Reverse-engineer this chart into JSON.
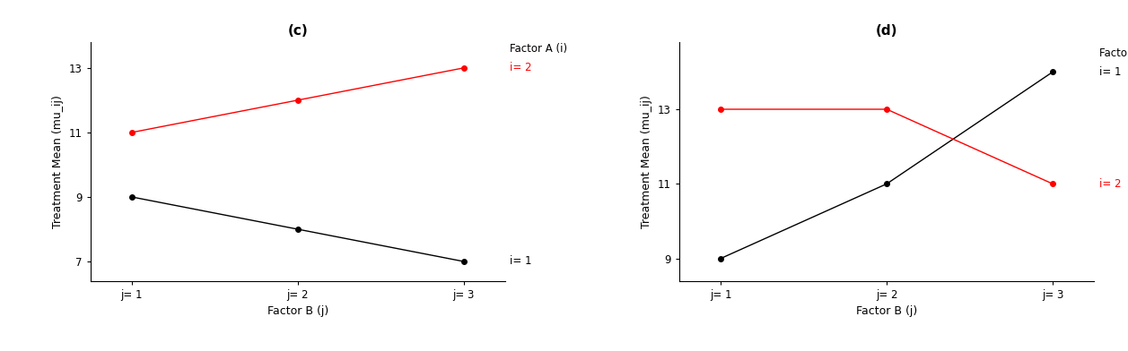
{
  "panel_c": {
    "title": "(c)",
    "xlabel": "Factor B (j)",
    "ylabel": "Treatment Mean (mu_ij)",
    "xtick_labels": [
      "j= 1",
      "j= 2",
      "j= 3"
    ],
    "xtick_vals": [
      1,
      2,
      3
    ],
    "line_i1": {
      "x": [
        1,
        2,
        3
      ],
      "y": [
        9,
        8,
        7
      ],
      "color": "black",
      "label": "i= 1"
    },
    "line_i2": {
      "x": [
        1,
        2,
        3
      ],
      "y": [
        11,
        12,
        13
      ],
      "color": "red",
      "label": "i= 2"
    },
    "ylim": [
      6.4,
      13.8
    ],
    "yticks": [
      7,
      9,
      11,
      13
    ],
    "legend_title": "Factor A (i)"
  },
  "panel_d": {
    "title": "(d)",
    "xlabel": "Factor B (j)",
    "ylabel": "Treatment Mean (mu_ij)",
    "xtick_labels": [
      "j= 1",
      "j= 2",
      "j= 3"
    ],
    "xtick_vals": [
      1,
      2,
      3
    ],
    "line_i1": {
      "x": [
        1,
        2,
        3
      ],
      "y": [
        9,
        11,
        14
      ],
      "color": "black",
      "label": "i= 1"
    },
    "line_i2": {
      "x": [
        1,
        2,
        3
      ],
      "y": [
        13,
        13,
        11
      ],
      "color": "red",
      "label": "i= 2"
    },
    "ylim": [
      8.4,
      14.8
    ],
    "yticks": [
      9,
      11,
      13
    ],
    "legend_title": "Factor A (i)"
  },
  "marker": "o",
  "markersize": 4,
  "linewidth": 1.0,
  "title_fontsize": 11,
  "label_fontsize": 9,
  "tick_fontsize": 8.5,
  "legend_fontsize": 8.5,
  "background_color": "white"
}
